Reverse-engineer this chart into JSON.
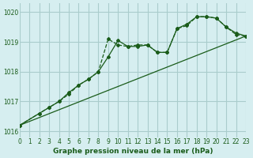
{
  "title": "Graphe pression niveau de la mer (hPa)",
  "bg_color": "#d6eef0",
  "grid_color": "#aacccc",
  "line_color": "#1a5c1a",
  "xlim": [
    0,
    23
  ],
  "ylim": [
    1015.8,
    1020.3
  ],
  "yticks": [
    1016,
    1017,
    1018,
    1019,
    1020
  ],
  "xticks": [
    0,
    1,
    2,
    3,
    4,
    5,
    6,
    7,
    8,
    9,
    10,
    11,
    12,
    13,
    14,
    15,
    16,
    17,
    18,
    19,
    20,
    21,
    22,
    23
  ],
  "series1_x": [
    0,
    2,
    3,
    4,
    5,
    6,
    7,
    8,
    9,
    10,
    11,
    12,
    13,
    14,
    15,
    16,
    17,
    18,
    19,
    20,
    21,
    22,
    23
  ],
  "series1_y": [
    1016.2,
    1016.6,
    1016.8,
    1017.0,
    1017.3,
    1017.55,
    1017.75,
    1018.0,
    1018.5,
    1019.05,
    1018.85,
    1018.85,
    1018.9,
    1018.65,
    1018.65,
    1019.45,
    1019.6,
    1019.85,
    1019.85,
    1019.8,
    1019.5,
    1019.3,
    1019.2
  ],
  "series2_x": [
    0,
    2,
    3,
    4,
    5,
    6,
    7,
    8,
    9,
    10,
    11,
    12,
    13,
    14,
    15,
    16,
    17,
    18,
    19,
    20,
    21,
    22,
    23
  ],
  "series2_y": [
    1016.2,
    1016.6,
    1016.8,
    1017.0,
    1017.25,
    1017.55,
    1017.75,
    1018.0,
    1019.1,
    1018.9,
    1018.85,
    1018.9,
    1018.9,
    1018.65,
    1018.65,
    1019.45,
    1019.55,
    1019.85,
    1019.85,
    1019.8,
    1019.5,
    1019.25,
    1019.2
  ],
  "series3_x": [
    0,
    23
  ],
  "series3_y": [
    1016.2,
    1019.2
  ]
}
